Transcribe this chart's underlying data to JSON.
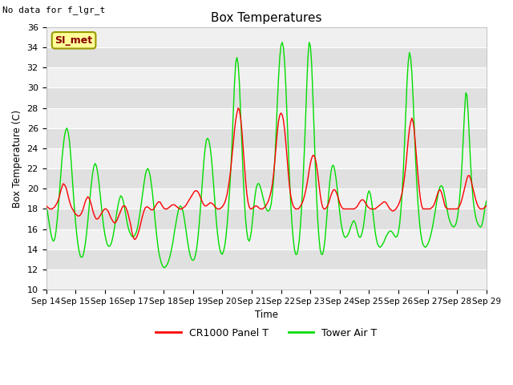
{
  "title": "Box Temperatures",
  "top_left_text": "No data for f_lgr_t",
  "legend_label": "SI_met",
  "ylabel": "Box Temperature (C)",
  "xlabel": "Time",
  "ylim": [
    10,
    36
  ],
  "yticks": [
    10,
    12,
    14,
    16,
    18,
    20,
    22,
    24,
    26,
    28,
    30,
    32,
    34,
    36
  ],
  "xtick_labels": [
    "Sep 14",
    "Sep 15",
    "Sep 16",
    "Sep 17",
    "Sep 18",
    "Sep 19",
    "Sep 20",
    "Sep 21",
    "Sep 22",
    "Sep 23",
    "Sep 24",
    "Sep 25",
    "Sep 26",
    "Sep 27",
    "Sep 28",
    "Sep 29"
  ],
  "line1_color": "#ff0000",
  "line1_label": "CR1000 Panel T",
  "line2_color": "#00dd00",
  "line2_label": "Tower Air T",
  "fig_bg_color": "#ffffff",
  "plot_bg_color": "#ffffff",
  "band_light": "#f0f0f0",
  "band_dark": "#e0e0e0",
  "legend_box_color": "#ffff99",
  "legend_box_edge": "#999900",
  "legend_text_color": "#880000",
  "x_days": [
    0,
    0.042,
    0.083,
    0.125,
    0.167,
    0.208,
    0.25,
    0.292,
    0.333,
    0.375,
    0.417,
    0.458,
    0.5,
    0.542,
    0.583,
    0.625,
    0.667,
    0.708,
    0.75,
    0.792,
    0.833,
    0.875,
    0.917,
    0.958,
    1,
    1.042,
    1.083,
    1.125,
    1.167,
    1.208,
    1.25,
    1.292,
    1.333,
    1.375,
    1.417,
    1.458,
    1.5,
    1.542,
    1.583,
    1.625,
    1.667,
    1.708,
    1.75,
    1.792,
    1.833,
    1.875,
    1.917,
    1.958,
    2,
    2.042,
    2.083,
    2.125,
    2.167,
    2.208,
    2.25,
    2.292,
    2.333,
    2.375,
    2.417,
    2.458,
    2.5,
    2.542,
    2.583,
    2.625,
    2.667,
    2.708,
    2.75,
    2.792,
    2.833,
    2.875,
    2.917,
    2.958,
    3,
    3.042,
    3.083,
    3.125,
    3.167,
    3.208,
    3.25,
    3.292,
    3.333,
    3.375,
    3.417,
    3.458,
    3.5,
    3.542,
    3.583,
    3.625,
    3.667,
    3.708,
    3.75,
    3.792,
    3.833,
    3.875,
    3.917,
    3.958,
    4,
    4.042,
    4.083,
    4.125,
    4.167,
    4.208,
    4.25,
    4.292,
    4.333,
    4.375,
    4.417,
    4.458,
    4.5,
    4.542,
    4.583,
    4.625,
    4.667,
    4.708,
    4.75,
    4.792,
    4.833,
    4.875,
    4.917,
    4.958,
    5,
    5.042,
    5.083,
    5.125,
    5.167,
    5.208,
    5.25,
    5.292,
    5.333,
    5.375,
    5.417,
    5.458,
    5.5,
    5.542,
    5.583,
    5.625,
    5.667,
    5.708,
    5.75,
    5.792,
    5.833,
    5.875,
    5.917,
    5.958,
    6,
    6.042,
    6.083,
    6.125,
    6.167,
    6.208,
    6.25,
    6.292,
    6.333,
    6.375,
    6.417,
    6.458,
    6.5,
    6.542,
    6.583,
    6.625,
    6.667,
    6.708,
    6.75,
    6.792,
    6.833,
    6.875,
    6.917,
    6.958,
    7,
    7.042,
    7.083,
    7.125,
    7.167,
    7.208,
    7.25,
    7.292,
    7.333,
    7.375,
    7.417,
    7.458,
    7.5,
    7.542,
    7.583,
    7.625,
    7.667,
    7.708,
    7.75,
    7.792,
    7.833,
    7.875,
    7.917,
    7.958,
    8,
    8.042,
    8.083,
    8.125,
    8.167,
    8.208,
    8.25,
    8.292,
    8.333,
    8.375,
    8.417,
    8.458,
    8.5,
    8.542,
    8.583,
    8.625,
    8.667,
    8.708,
    8.75,
    8.792,
    8.833,
    8.875,
    8.917,
    8.958,
    9,
    9.042,
    9.083,
    9.125,
    9.167,
    9.208,
    9.25,
    9.292,
    9.333,
    9.375,
    9.417,
    9.458,
    9.5,
    9.542,
    9.583,
    9.625,
    9.667,
    9.708,
    9.75,
    9.792,
    9.833,
    9.875,
    9.917,
    9.958,
    10,
    10.042,
    10.083,
    10.125,
    10.167,
    10.208,
    10.25,
    10.292,
    10.333,
    10.375,
    10.417,
    10.458,
    10.5,
    10.542,
    10.583,
    10.625,
    10.667,
    10.708,
    10.75,
    10.792,
    10.833,
    10.875,
    10.917,
    10.958,
    11,
    11.042,
    11.083,
    11.125,
    11.167,
    11.208,
    11.25,
    11.292,
    11.333,
    11.375,
    11.417,
    11.458,
    11.5,
    11.542,
    11.583,
    11.625,
    11.667,
    11.708,
    11.75,
    11.792,
    11.833,
    11.875,
    11.917,
    11.958,
    12,
    12.042,
    12.083,
    12.125,
    12.167,
    12.208,
    12.25,
    12.292,
    12.333,
    12.375,
    12.417,
    12.458,
    12.5,
    12.542,
    12.583,
    12.625,
    12.667,
    12.708,
    12.75,
    12.792,
    12.833,
    12.875,
    12.917,
    12.958,
    13,
    13.042,
    13.083,
    13.125,
    13.167,
    13.208,
    13.25,
    13.292,
    13.333,
    13.375,
    13.417,
    13.458,
    13.5,
    13.542,
    13.583,
    13.625,
    13.667,
    13.708,
    13.75,
    13.792,
    13.833,
    13.875,
    13.917,
    13.958,
    14,
    14.042,
    14.083,
    14.125,
    14.167,
    14.208,
    14.25,
    14.292,
    14.333,
    14.375,
    14.417,
    14.458,
    14.5,
    14.542,
    14.583,
    14.625,
    14.667,
    14.708,
    14.75,
    14.792,
    14.833,
    14.875,
    14.917,
    14.958,
    15
  ],
  "red_y": [
    18.3,
    18.2,
    18.1,
    18.0,
    18.0,
    18.0,
    18.1,
    18.2,
    18.4,
    18.6,
    18.9,
    19.3,
    19.8,
    20.2,
    20.5,
    20.4,
    20.2,
    19.8,
    19.3,
    18.8,
    18.4,
    18.1,
    17.9,
    17.7,
    17.5,
    17.4,
    17.3,
    17.3,
    17.4,
    17.6,
    17.9,
    18.3,
    18.7,
    19.0,
    19.2,
    19.1,
    18.8,
    18.4,
    17.9,
    17.5,
    17.2,
    17.0,
    17.0,
    17.1,
    17.3,
    17.5,
    17.7,
    17.9,
    18.0,
    18.0,
    17.9,
    17.7,
    17.4,
    17.1,
    16.9,
    16.7,
    16.6,
    16.7,
    16.9,
    17.2,
    17.5,
    17.8,
    18.1,
    18.3,
    18.3,
    18.2,
    17.9,
    17.5,
    17.0,
    16.5,
    15.8,
    15.3,
    15.0,
    15.0,
    15.2,
    15.5,
    15.9,
    16.4,
    16.9,
    17.4,
    17.8,
    18.1,
    18.2,
    18.2,
    18.1,
    18.0,
    17.9,
    17.9,
    18.0,
    18.2,
    18.4,
    18.6,
    18.7,
    18.7,
    18.5,
    18.3,
    18.1,
    18.0,
    18.0,
    18.0,
    18.1,
    18.2,
    18.3,
    18.4,
    18.4,
    18.4,
    18.3,
    18.2,
    18.1,
    18.0,
    18.0,
    18.0,
    18.1,
    18.2,
    18.3,
    18.5,
    18.7,
    18.9,
    19.1,
    19.3,
    19.5,
    19.7,
    19.8,
    19.8,
    19.7,
    19.5,
    19.2,
    18.9,
    18.6,
    18.4,
    18.3,
    18.3,
    18.4,
    18.5,
    18.6,
    18.6,
    18.5,
    18.4,
    18.2,
    18.1,
    18.0,
    18.0,
    18.0,
    18.1,
    18.2,
    18.4,
    18.6,
    19.0,
    19.5,
    20.2,
    21.0,
    22.0,
    23.2,
    24.5,
    25.8,
    26.8,
    27.5,
    28.0,
    27.8,
    27.0,
    25.8,
    24.2,
    22.5,
    20.9,
    19.6,
    18.7,
    18.2,
    18.0,
    18.0,
    18.1,
    18.2,
    18.3,
    18.3,
    18.2,
    18.1,
    18.0,
    18.0,
    18.0,
    18.1,
    18.2,
    18.4,
    18.6,
    18.9,
    19.3,
    19.8,
    20.5,
    21.5,
    22.8,
    24.2,
    25.6,
    26.7,
    27.3,
    27.5,
    27.3,
    26.8,
    25.8,
    24.5,
    23.0,
    21.5,
    20.2,
    19.3,
    18.7,
    18.3,
    18.1,
    18.0,
    18.0,
    18.0,
    18.1,
    18.3,
    18.5,
    18.8,
    19.2,
    19.7,
    20.3,
    21.0,
    21.8,
    22.5,
    23.0,
    23.3,
    23.3,
    23.0,
    22.4,
    21.5,
    20.5,
    19.5,
    18.7,
    18.2,
    18.0,
    18.0,
    18.1,
    18.3,
    18.6,
    19.0,
    19.4,
    19.7,
    19.9,
    19.9,
    19.7,
    19.4,
    19.0,
    18.6,
    18.3,
    18.1,
    18.0,
    18.0,
    18.0,
    18.0,
    18.0,
    18.0,
    18.0,
    18.0,
    18.0,
    18.0,
    18.1,
    18.2,
    18.4,
    18.6,
    18.8,
    18.9,
    18.9,
    18.8,
    18.6,
    18.4,
    18.2,
    18.1,
    18.0,
    18.0,
    18.0,
    18.0,
    18.0,
    18.1,
    18.2,
    18.3,
    18.4,
    18.5,
    18.6,
    18.7,
    18.7,
    18.6,
    18.4,
    18.2,
    18.0,
    17.9,
    17.8,
    17.8,
    17.9,
    18.0,
    18.2,
    18.4,
    18.7,
    19.1,
    19.6,
    20.3,
    21.2,
    22.2,
    23.5,
    24.8,
    25.9,
    26.6,
    27.0,
    26.6,
    25.7,
    24.3,
    22.8,
    21.3,
    20.0,
    19.0,
    18.3,
    18.0,
    18.0,
    18.0,
    18.0,
    18.0,
    18.0,
    18.0,
    18.1,
    18.2,
    18.4,
    18.7,
    19.1,
    19.5,
    19.8,
    19.9,
    19.7,
    19.3,
    18.8,
    18.3,
    18.1,
    18.0,
    18.0,
    18.0,
    18.0,
    18.0,
    18.0,
    18.0,
    18.0,
    18.0,
    18.1,
    18.3,
    18.6,
    19.0,
    19.5,
    20.0,
    20.5,
    21.0,
    21.3,
    21.3,
    21.0,
    20.5,
    20.0,
    19.5,
    19.0,
    18.6,
    18.3,
    18.1,
    18.0,
    18.0,
    18.0,
    18.1,
    18.2,
    18.3
  ],
  "green_y": [
    18.3,
    17.8,
    17.0,
    16.2,
    15.5,
    15.0,
    14.8,
    15.0,
    15.7,
    16.8,
    18.2,
    19.8,
    21.5,
    23.0,
    24.2,
    25.2,
    25.8,
    26.0,
    25.6,
    24.8,
    23.5,
    21.8,
    20.0,
    18.3,
    16.8,
    15.5,
    14.5,
    13.8,
    13.3,
    13.2,
    13.3,
    13.8,
    14.5,
    15.5,
    16.7,
    18.0,
    19.3,
    20.5,
    21.5,
    22.2,
    22.5,
    22.3,
    21.7,
    20.8,
    19.7,
    18.5,
    17.3,
    16.3,
    15.5,
    14.9,
    14.5,
    14.3,
    14.3,
    14.5,
    14.9,
    15.5,
    16.2,
    17.0,
    17.8,
    18.5,
    19.0,
    19.3,
    19.2,
    18.8,
    18.2,
    17.5,
    16.8,
    16.2,
    15.8,
    15.5,
    15.3,
    15.2,
    15.3,
    15.5,
    15.8,
    16.3,
    17.0,
    17.8,
    18.7,
    19.6,
    20.5,
    21.3,
    21.8,
    22.0,
    21.8,
    21.3,
    20.5,
    19.5,
    18.3,
    17.0,
    15.8,
    14.7,
    13.8,
    13.2,
    12.7,
    12.4,
    12.2,
    12.2,
    12.3,
    12.5,
    12.8,
    13.2,
    13.7,
    14.3,
    15.0,
    15.8,
    16.5,
    17.2,
    17.8,
    18.2,
    18.3,
    18.1,
    17.7,
    17.0,
    16.2,
    15.3,
    14.5,
    13.8,
    13.3,
    13.0,
    12.9,
    13.0,
    13.4,
    14.0,
    15.0,
    16.3,
    17.8,
    19.5,
    21.2,
    22.8,
    24.0,
    24.8,
    25.0,
    24.8,
    24.2,
    23.2,
    21.8,
    20.2,
    18.5,
    17.0,
    15.7,
    14.7,
    14.0,
    13.6,
    13.5,
    13.8,
    14.3,
    15.2,
    16.5,
    18.0,
    19.8,
    22.0,
    24.5,
    27.5,
    30.5,
    32.5,
    33.0,
    32.3,
    30.5,
    27.5,
    24.5,
    21.5,
    19.0,
    17.0,
    15.8,
    15.0,
    14.8,
    15.2,
    16.0,
    17.2,
    18.5,
    19.5,
    20.2,
    20.5,
    20.5,
    20.2,
    19.8,
    19.3,
    18.8,
    18.3,
    18.0,
    17.8,
    17.8,
    18.0,
    18.5,
    19.5,
    21.0,
    23.0,
    25.5,
    28.5,
    31.0,
    33.0,
    34.2,
    34.5,
    34.0,
    32.5,
    30.0,
    27.0,
    24.0,
    21.0,
    18.5,
    16.5,
    15.0,
    14.0,
    13.5,
    13.5,
    14.0,
    15.0,
    16.5,
    18.5,
    20.8,
    23.5,
    26.5,
    30.0,
    33.0,
    34.5,
    34.2,
    32.5,
    29.5,
    26.0,
    22.5,
    19.5,
    17.0,
    15.2,
    14.0,
    13.5,
    13.5,
    14.0,
    15.0,
    16.5,
    18.0,
    19.5,
    20.8,
    21.8,
    22.3,
    22.3,
    21.8,
    21.0,
    20.0,
    18.8,
    17.7,
    16.7,
    16.0,
    15.5,
    15.2,
    15.2,
    15.3,
    15.5,
    15.8,
    16.2,
    16.5,
    16.8,
    16.8,
    16.5,
    16.0,
    15.5,
    15.2,
    15.2,
    15.5,
    16.0,
    16.8,
    17.8,
    18.8,
    19.5,
    19.8,
    19.5,
    18.8,
    17.8,
    16.7,
    15.7,
    15.0,
    14.5,
    14.3,
    14.2,
    14.3,
    14.5,
    14.7,
    15.0,
    15.3,
    15.5,
    15.7,
    15.8,
    15.8,
    15.7,
    15.5,
    15.3,
    15.2,
    15.3,
    15.7,
    16.5,
    17.8,
    19.5,
    21.8,
    24.5,
    27.5,
    30.5,
    32.5,
    33.5,
    33.0,
    31.5,
    29.0,
    26.0,
    23.0,
    20.5,
    18.5,
    17.0,
    15.8,
    15.0,
    14.5,
    14.3,
    14.2,
    14.3,
    14.5,
    14.8,
    15.2,
    15.7,
    16.3,
    17.0,
    17.7,
    18.5,
    19.2,
    19.8,
    20.2,
    20.3,
    20.2,
    19.8,
    19.2,
    18.5,
    17.8,
    17.2,
    16.8,
    16.5,
    16.3,
    16.2,
    16.3,
    16.5,
    17.0,
    17.8,
    19.0,
    20.5,
    22.5,
    25.0,
    27.5,
    29.5,
    29.3,
    27.5,
    25.0,
    22.5,
    20.5,
    19.0,
    18.0,
    17.3,
    16.8,
    16.5,
    16.3,
    16.2,
    16.3,
    16.8,
    17.5,
    18.3,
    18.8
  ]
}
